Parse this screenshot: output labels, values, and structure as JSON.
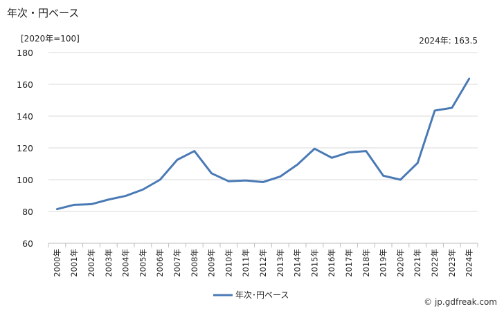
{
  "title": "年次・円ベース",
  "unit_label": "[2020年=100]",
  "latest_label": "2024年: 163.5",
  "credit": "© jp.gdfreak.com",
  "colors": {
    "series": "#4a7ab5",
    "grid": "#d9d9d9",
    "axis": "#bdbdbd"
  },
  "chart_data": {
    "type": "line",
    "categories": [
      "2000年",
      "2001年",
      "2002年",
      "2003年",
      "2004年",
      "2005年",
      "2006年",
      "2007年",
      "2008年",
      "2009年",
      "2010年",
      "2011年",
      "2012年",
      "2013年",
      "2014年",
      "2015年",
      "2016年",
      "2017年",
      "2018年",
      "2019年",
      "2020年",
      "2021年",
      "2022年",
      "2023年",
      "2024年"
    ],
    "series": [
      {
        "name": "年次･円ベース",
        "values": [
          81.5,
          84.2,
          84.6,
          87.5,
          89.8,
          93.8,
          100.0,
          112.5,
          118.0,
          104.0,
          99.0,
          99.5,
          98.5,
          102.0,
          109.5,
          119.5,
          113.8,
          117.2,
          118.0,
          102.5,
          100.0,
          110.5,
          143.5,
          145.2,
          163.5
        ]
      }
    ],
    "ylim": [
      60,
      180
    ],
    "yticks": [
      60,
      80,
      100,
      120,
      140,
      160,
      180
    ],
    "grid": true,
    "legend": "bottom-center"
  }
}
